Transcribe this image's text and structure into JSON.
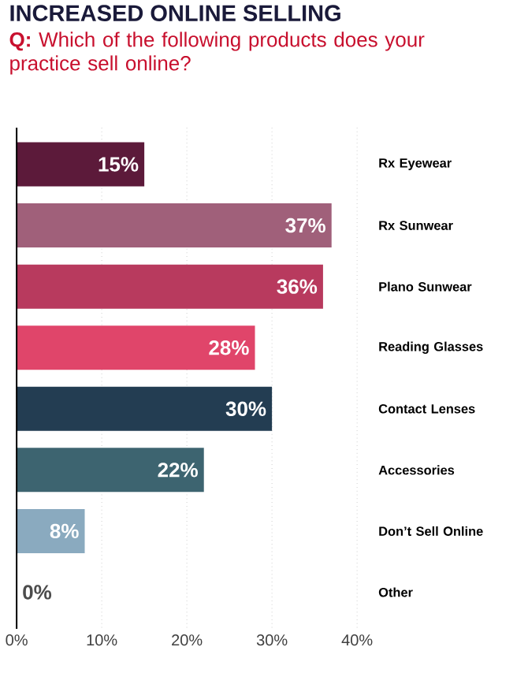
{
  "chart_data": {
    "type": "bar",
    "orientation": "horizontal",
    "title": "INCREASED ONLINE SELLING",
    "subtitle": "**Q:** Which of the following products does your practice sell online?",
    "categories": [
      "Rx Eyewear",
      "Rx Sunwear",
      "Plano Sunwear",
      "Reading Glasses",
      "Contact Lenses",
      "Accessories",
      "Don’t Sell Online",
      "Other"
    ],
    "values": [
      15,
      37,
      36,
      28,
      30,
      22,
      8,
      0
    ],
    "value_labels": [
      "15%",
      "37%",
      "36%",
      "28%",
      "30%",
      "22%",
      "8%",
      "0%"
    ],
    "colors": [
      "#5c1a3a",
      "#a0607a",
      "#b83a5e",
      "#e0456a",
      "#233d52",
      "#3d6470",
      "#8aaabf",
      "#999999"
    ],
    "xlim": [
      0,
      40
    ],
    "xticks": [
      {
        "value": 0,
        "label": "0%"
      },
      {
        "value": 10,
        "label": "10%"
      },
      {
        "value": 20,
        "label": "20%"
      },
      {
        "value": 30,
        "label": "30%"
      },
      {
        "value": 40,
        "label": "40%"
      }
    ],
    "grid": "x"
  }
}
